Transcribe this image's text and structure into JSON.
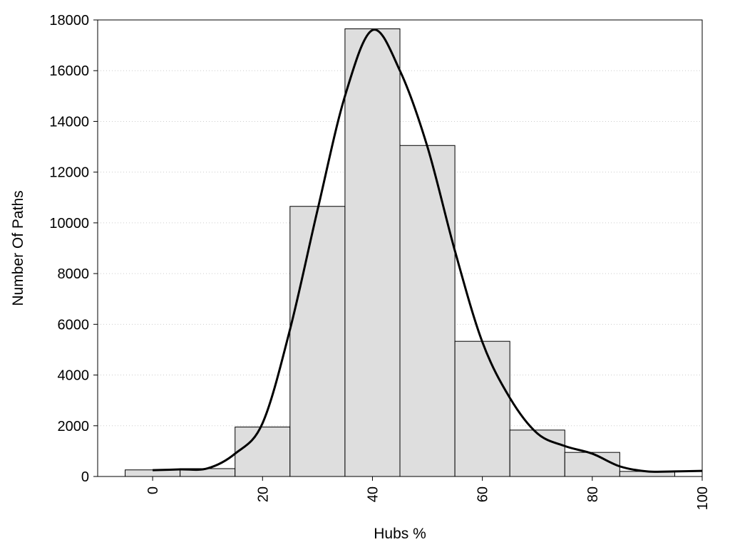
{
  "chart_data": {
    "type": "bar",
    "title": "",
    "xlabel": "Hubs %",
    "ylabel": "Number Of Paths",
    "xlim": [
      -10,
      100
    ],
    "ylim": [
      0,
      18000
    ],
    "x_ticks": [
      0,
      20,
      40,
      60,
      80,
      100
    ],
    "y_ticks": [
      0,
      2000,
      4000,
      6000,
      8000,
      10000,
      12000,
      14000,
      16000,
      18000
    ],
    "grid": "horizontal dotted",
    "bin_width": 10,
    "categories": [
      0,
      10,
      20,
      30,
      40,
      50,
      60,
      70,
      80,
      90
    ],
    "values": [
      260,
      310,
      1950,
      10650,
      17650,
      13050,
      5330,
      1830,
      950,
      200
    ],
    "smooth_curve": {
      "x": [
        0,
        5,
        10,
        15,
        20,
        25,
        30,
        35,
        40,
        45,
        50,
        55,
        60,
        65,
        70,
        75,
        80,
        85,
        90,
        95,
        100
      ],
      "y": [
        250,
        280,
        320,
        900,
        2100,
        5800,
        10500,
        15000,
        17600,
        16000,
        13000,
        8900,
        5300,
        3100,
        1700,
        1200,
        900,
        400,
        200,
        200,
        220
      ]
    },
    "colors": {
      "bar_fill": "#dedede",
      "bar_stroke": "#000000",
      "curve": "#000000",
      "grid": "#cccccc"
    }
  }
}
